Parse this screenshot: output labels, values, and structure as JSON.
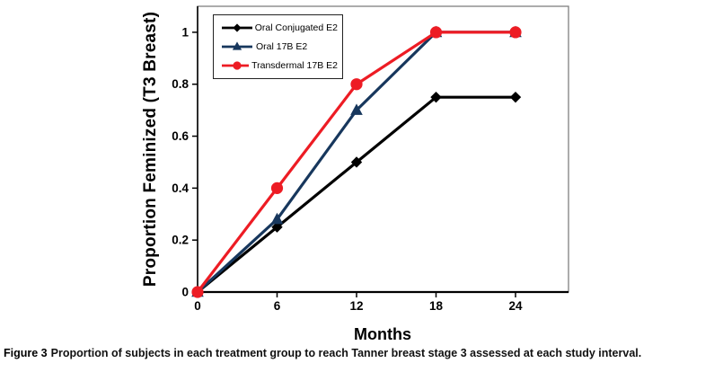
{
  "figure": {
    "caption_prefix": "Figure 3",
    "caption_text": "Proportion of subjects in each treatment group to reach Tanner breast stage 3 assessed at each study interval."
  },
  "chart_data": {
    "type": "line",
    "title": "",
    "xlabel": "Months",
    "ylabel": "Proportion Feminized (T3 Breast)",
    "x": [
      0,
      6,
      12,
      18,
      24
    ],
    "x_tick_labels": [
      "0",
      "6",
      "12",
      "18",
      "24"
    ],
    "y_ticks": [
      0,
      0.2,
      0.4,
      0.6,
      0.8,
      1
    ],
    "y_tick_labels": [
      "0",
      "0.2",
      "0.4",
      "0.6",
      "0.8",
      "1"
    ],
    "xlim": [
      0,
      28
    ],
    "ylim": [
      0,
      1.1
    ],
    "grid": false,
    "legend_position": "top-left-inside",
    "series": [
      {
        "name": "Oral Conjugated E2",
        "color": "#000000",
        "marker": "diamond",
        "values": [
          0,
          0.25,
          0.5,
          0.75,
          0.75
        ]
      },
      {
        "name": "Oral 17B E2",
        "color": "#17375d",
        "marker": "triangle",
        "values": [
          0,
          0.28,
          0.7,
          1.0,
          1.0
        ]
      },
      {
        "name": "Transdermal 17B E2",
        "color": "#ed1c24",
        "marker": "circle",
        "values": [
          0,
          0.4,
          0.8,
          1.0,
          1.0
        ]
      }
    ],
    "axis_color": "#000000",
    "plot_border_color": "#7f7f7f"
  }
}
